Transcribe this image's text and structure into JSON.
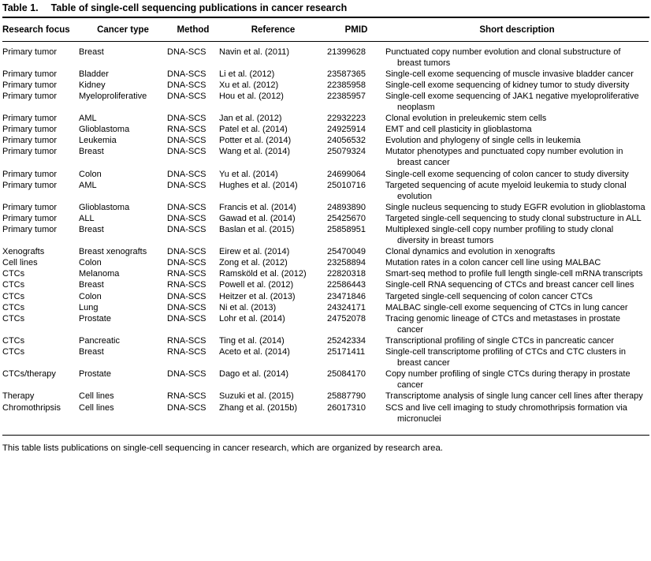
{
  "table": {
    "label": "Table 1.",
    "caption": "Table of single-cell sequencing publications in cancer research",
    "columns": {
      "focus": "Research focus",
      "cancer": "Cancer type",
      "method": "Method",
      "reference": "Reference",
      "pmid": "PMID",
      "description": "Short description"
    },
    "row_keys": [
      "focus",
      "cancer",
      "method",
      "reference",
      "pmid",
      "description"
    ],
    "rows": [
      {
        "focus": "Primary tumor",
        "cancer": "Breast",
        "method": "DNA-SCS",
        "reference": "Navin et al. (2011)",
        "pmid": "21399628",
        "description": "Punctuated copy number evolution and clonal substructure of breast tumors"
      },
      {
        "focus": "Primary tumor",
        "cancer": "Bladder",
        "method": "DNA-SCS",
        "reference": "Li et al. (2012)",
        "pmid": "23587365",
        "description": "Single-cell exome sequencing of muscle invasive bladder cancer"
      },
      {
        "focus": "Primary tumor",
        "cancer": "Kidney",
        "method": "DNA-SCS",
        "reference": "Xu et al. (2012)",
        "pmid": "22385958",
        "description": "Single-cell exome sequencing of kidney tumor to study diversity"
      },
      {
        "focus": "Primary tumor",
        "cancer": "Myeloproliferative",
        "method": "DNA-SCS",
        "reference": "Hou et al. (2012)",
        "pmid": "22385957",
        "description": "Single-cell exome sequencing of JAK1 negative myeloproliferative neoplasm"
      },
      {
        "focus": "Primary tumor",
        "cancer": "AML",
        "method": "DNA-SCS",
        "reference": "Jan et al. (2012)",
        "pmid": "22932223",
        "description": "Clonal evolution in preleukemic stem cells"
      },
      {
        "focus": "Primary tumor",
        "cancer": "Glioblastoma",
        "method": "RNA-SCS",
        "reference": "Patel et al. (2014)",
        "pmid": "24925914",
        "description": "EMT and cell plasticity in glioblastoma"
      },
      {
        "focus": "Primary tumor",
        "cancer": "Leukemia",
        "method": "DNA-SCS",
        "reference": "Potter et al. (2014)",
        "pmid": "24056532",
        "description": "Evolution and phylogeny of single cells in leukemia"
      },
      {
        "focus": "Primary tumor",
        "cancer": "Breast",
        "method": "DNA-SCS",
        "reference": "Wang et al. (2014)",
        "pmid": "25079324",
        "description": "Mutator phenotypes and punctuated copy number evolution in breast cancer"
      },
      {
        "focus": "Primary tumor",
        "cancer": "Colon",
        "method": "DNA-SCS",
        "reference": "Yu et al. (2014)",
        "pmid": "24699064",
        "description": "Single-cell exome sequencing of colon cancer to study diversity"
      },
      {
        "focus": "Primary tumor",
        "cancer": "AML",
        "method": "DNA-SCS",
        "reference": "Hughes et al. (2014)",
        "pmid": "25010716",
        "description": "Targeted sequencing of acute myeloid leukemia to study clonal evolution"
      },
      {
        "focus": "Primary tumor",
        "cancer": "Glioblastoma",
        "method": "DNA-SCS",
        "reference": "Francis et al. (2014)",
        "pmid": "24893890",
        "description": "Single nucleus sequencing to study EGFR evolution in glioblastoma"
      },
      {
        "focus": "Primary tumor",
        "cancer": "ALL",
        "method": "DNA-SCS",
        "reference": "Gawad et al. (2014)",
        "pmid": "25425670",
        "description": "Targeted single-cell sequencing to study clonal substructure in ALL"
      },
      {
        "focus": "Primary tumor",
        "cancer": "Breast",
        "method": "DNA-SCS",
        "reference": "Baslan et al. (2015)",
        "pmid": "25858951",
        "description": "Multiplexed single-cell copy number profiling to study clonal diversity in breast tumors"
      },
      {
        "focus": "Xenografts",
        "cancer": "Breast xenografts",
        "method": "DNA-SCS",
        "reference": "Eirew et al. (2014)",
        "pmid": "25470049",
        "description": "Clonal dynamics and evolution in xenografts"
      },
      {
        "focus": "Cell lines",
        "cancer": "Colon",
        "method": "DNA-SCS",
        "reference": "Zong et al. (2012)",
        "pmid": "23258894",
        "description": "Mutation rates in a colon cancer cell line using MALBAC"
      },
      {
        "focus": "CTCs",
        "cancer": "Melanoma",
        "method": "RNA-SCS",
        "reference": "Ramsköld et al. (2012)",
        "pmid": "22820318",
        "description": "Smart-seq method to profile full length single-cell mRNA transcripts"
      },
      {
        "focus": "CTCs",
        "cancer": "Breast",
        "method": "RNA-SCS",
        "reference": "Powell et al. (2012)",
        "pmid": "22586443",
        "description": "Single-cell RNA sequencing of CTCs and breast cancer cell lines"
      },
      {
        "focus": "CTCs",
        "cancer": "Colon",
        "method": "DNA-SCS",
        "reference": "Heitzer et al. (2013)",
        "pmid": "23471846",
        "description": "Targeted single-cell sequencing of colon cancer CTCs"
      },
      {
        "focus": "CTCs",
        "cancer": "Lung",
        "method": "DNA-SCS",
        "reference": "Ni et al. (2013)",
        "pmid": "24324171",
        "description": "MALBAC single-cell exome sequencing of CTCs in lung cancer"
      },
      {
        "focus": "CTCs",
        "cancer": "Prostate",
        "method": "DNA-SCS",
        "reference": "Lohr et al. (2014)",
        "pmid": "24752078",
        "description": "Tracing genomic lineage of CTCs and metastases in prostate cancer"
      },
      {
        "focus": "CTCs",
        "cancer": "Pancreatic",
        "method": "RNA-SCS",
        "reference": "Ting et al. (2014)",
        "pmid": "25242334",
        "description": "Transcriptional profiling of single CTCs in pancreatic cancer"
      },
      {
        "focus": "CTCs",
        "cancer": "Breast",
        "method": "RNA-SCS",
        "reference": "Aceto et al. (2014)",
        "pmid": "25171411",
        "description": "Single-cell transcriptome profiling of CTCs and CTC clusters in breast cancer"
      },
      {
        "focus": "CTCs/therapy",
        "cancer": "Prostate",
        "method": "DNA-SCS",
        "reference": "Dago et al. (2014)",
        "pmid": "25084170",
        "description": "Copy number profiling of single CTCs during therapy in prostate cancer"
      },
      {
        "focus": "Therapy",
        "cancer": "Cell lines",
        "method": "RNA-SCS",
        "reference": "Suzuki et al. (2015)",
        "pmid": "25887790",
        "description": "Transcriptome analysis of single lung cancer cell lines after therapy"
      },
      {
        "focus": "Chromothripsis",
        "cancer": "Cell lines",
        "method": "DNA-SCS",
        "reference": "Zhang et al. (2015b)",
        "pmid": "26017310",
        "description": "SCS and live cell imaging to study chromothripsis formation via micronuclei"
      }
    ],
    "footnote": "This table lists publications on single-cell sequencing in cancer research, which are organized by research area."
  }
}
